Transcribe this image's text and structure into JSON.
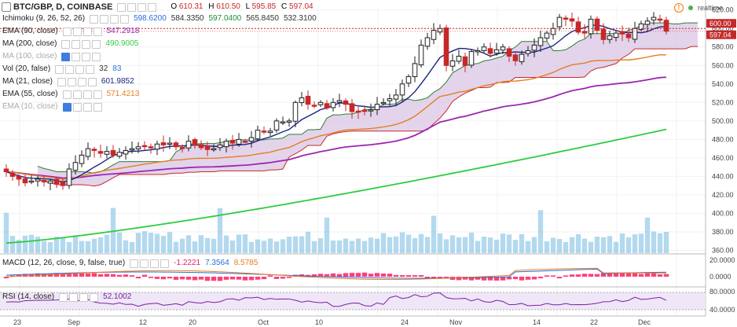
{
  "header": {
    "symbol": "BTC/GBP, D, COINBASE",
    "o_label": "O",
    "o": "610.31",
    "h_label": "H",
    "h": "610.50",
    "l_label": "L",
    "l": "595.85",
    "c_label": "C",
    "c": "597.04",
    "realtime": "realtime"
  },
  "indicators": [
    {
      "label": "Ichimoku (9, 26, 52, 26)",
      "values": [
        "598.6200",
        "584.3350",
        "597.0400",
        "565.8450",
        "532.3100"
      ],
      "colors": [
        "#2a6fdb",
        "#333333",
        "#1b8f3a",
        "#333333",
        "#333333"
      ],
      "visible": true
    },
    {
      "label": "EMA (90, close)",
      "values": [
        "547.2918"
      ],
      "colors": [
        "#9c27b0"
      ],
      "visible": true
    },
    {
      "label": "MA (200, close)",
      "values": [
        "490.9005"
      ],
      "colors": [
        "#2ecc40"
      ],
      "visible": true
    },
    {
      "label": "MA (100, close)",
      "values": [],
      "colors": [],
      "visible": false
    },
    {
      "label": "Vol (20, false)",
      "values": [
        "32",
        "83"
      ],
      "colors": [
        "#333333",
        "#2a6fdb"
      ],
      "visible": true
    },
    {
      "label": "MA (21, close)",
      "values": [
        "601.9852"
      ],
      "colors": [
        "#1a237e"
      ],
      "visible": true
    },
    {
      "label": "EMA (55, close)",
      "values": [
        "571.4213"
      ],
      "colors": [
        "#e67e22"
      ],
      "visible": true
    },
    {
      "label": "EMA (10, close)",
      "values": [],
      "colors": [],
      "visible": false
    }
  ],
  "macd": {
    "label": "MACD (12, 26, close, 9, false, true)",
    "values": [
      "-1.2221",
      "7.3564",
      "8.5785"
    ],
    "colors": [
      "#e91e63",
      "#2a6fdb",
      "#e67e22"
    ]
  },
  "rsi": {
    "label": "RSI (14, close)",
    "values": [
      "52.1002"
    ],
    "colors": [
      "#7b1fa2"
    ]
  },
  "colors": {
    "up": "#1e1e1e",
    "down": "#c62828",
    "ema90": "#9c27b0",
    "ma200": "#2ecc40",
    "ma21": "#1a237e",
    "ema55": "#e67e22",
    "kumo_fill": "#d9c6e6",
    "span_a": "#2e7d32",
    "span_b": "#c62828",
    "volume": "#74b9e0"
  },
  "chart_data": [
    {
      "type": "candlestick",
      "x_ticks": [
        "23",
        "Sep",
        "12",
        "20",
        "Oct",
        "10",
        "24",
        "Nov",
        "14",
        "22",
        "Dec"
      ],
      "y_ticks": [
        360,
        380,
        400,
        420,
        440,
        460,
        480,
        500,
        520,
        540,
        560,
        580,
        600,
        620
      ],
      "ylim": [
        357,
        624
      ],
      "price_labels": [
        "600.00",
        "597.04"
      ],
      "close": [
        445,
        440,
        437,
        433,
        435,
        437,
        434,
        435,
        432,
        430,
        448,
        455,
        463,
        470,
        468,
        465,
        467,
        463,
        466,
        468,
        470,
        472,
        473,
        471,
        475,
        474,
        476,
        472,
        470,
        478,
        474,
        471,
        469,
        470,
        474,
        478,
        476,
        480,
        478,
        482,
        490,
        488,
        489,
        500,
        499,
        500,
        520,
        525,
        518,
        516,
        520,
        514,
        520,
        522,
        518,
        510,
        510,
        511,
        512,
        518,
        520,
        524,
        528,
        540,
        548,
        562,
        582,
        590,
        598,
        600,
        560,
        565,
        570,
        560,
        575,
        576,
        580,
        573,
        577,
        580,
        570,
        565,
        572,
        576,
        582,
        590,
        595,
        600,
        612,
        610,
        608,
        596,
        595,
        610,
        598,
        588,
        592,
        595,
        594,
        590,
        600,
        605,
        608,
        612,
        609,
        597
      ],
      "ma21_end": 601.9852,
      "ema55_end": 571.4213,
      "ema90_end": 547.2918,
      "ma200_end": 490.9005
    },
    {
      "type": "bar",
      "name": "volume"
    },
    {
      "type": "line",
      "name": "MACD",
      "y_ticks": [
        "20.0000",
        "0.0000"
      ]
    },
    {
      "type": "line",
      "name": "RSI",
      "y_ticks": [
        "80.0000",
        "40.0000"
      ]
    }
  ]
}
